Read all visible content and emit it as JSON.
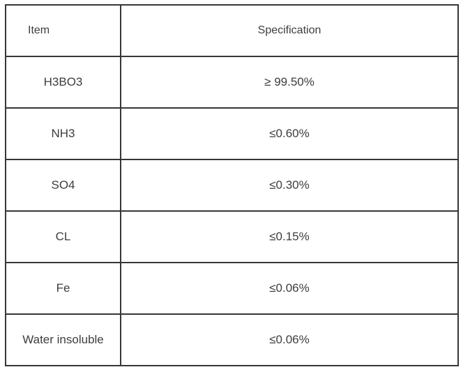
{
  "page": {
    "background_color": "#ffffff"
  },
  "table": {
    "colors": {
      "border": "#363636",
      "text": "#3d3d3d",
      "cell_background": "#ffffff"
    },
    "header": {
      "item": "Item",
      "specification": "Specification"
    },
    "rows": [
      {
        "item": "H3BO3",
        "spec": "≥ 99.50%"
      },
      {
        "item": "NH3",
        "spec": "≤0.60%"
      },
      {
        "item": "SO4",
        "spec": "≤0.30%"
      },
      {
        "item": "CL",
        "spec": "≤0.15%"
      },
      {
        "item": "Fe",
        "spec": "≤0.06%"
      },
      {
        "item": "Water insoluble",
        "spec": "≤0.06%"
      }
    ]
  }
}
